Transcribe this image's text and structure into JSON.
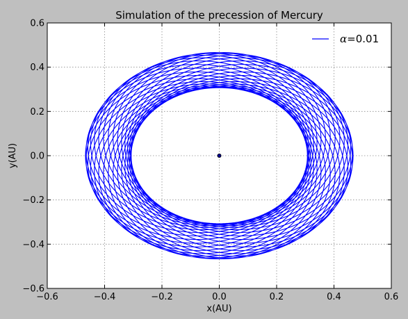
{
  "chart_data": {
    "type": "line",
    "title": "Simulation of the precession of Mercury",
    "xlabel": "x(AU)",
    "ylabel": "y(AU)",
    "xlim": [
      -0.6,
      0.6
    ],
    "ylim": [
      -0.6,
      0.6
    ],
    "xticks": [
      -0.6,
      -0.4,
      -0.2,
      0.0,
      0.2,
      0.4,
      0.6
    ],
    "yticks": [
      -0.6,
      -0.4,
      -0.2,
      0.0,
      0.2,
      0.4,
      0.6
    ],
    "xtick_labels": [
      "−0.6",
      "−0.4",
      "−0.2",
      "0.0",
      "0.2",
      "0.4",
      "0.6"
    ],
    "ytick_labels": [
      "−0.6",
      "−0.4",
      "−0.2",
      "0.0",
      "0.2",
      "0.4",
      "0.6"
    ],
    "grid": true,
    "legend_position": "top-right",
    "series": [
      {
        "name": "α=0.01",
        "legend_symbol": "α",
        "legend_text": "=0.01",
        "color": "#0000ff",
        "orbit": {
          "semi_major_axis": 0.387,
          "eccentricity": 0.206,
          "orbits_drawn": 30,
          "precession_total_deg": 360
        }
      }
    ],
    "sun": {
      "x": 0.0,
      "y": 0.0,
      "color": "#00008b"
    }
  },
  "colors": {
    "figure_background": "#bfbfbf",
    "axes_background": "#ffffff",
    "grid": "#8a8a8a",
    "orbit": "#0000ff"
  }
}
